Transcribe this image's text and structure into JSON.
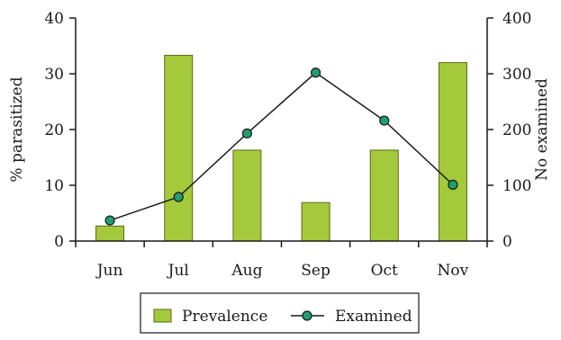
{
  "chart_data": {
    "type": "bar",
    "categories": [
      "Jun",
      "Jul",
      "Aug",
      "Sep",
      "Oct",
      "Nov"
    ],
    "series": [
      {
        "name": "Prevalence",
        "type": "bar",
        "axis": "left",
        "color": "#a4c93b",
        "values": [
          2.7,
          33.3,
          16.3,
          6.9,
          16.3,
          32.0
        ]
      },
      {
        "name": "Examined",
        "type": "line",
        "axis": "right",
        "color": "#1f9e6e",
        "values": [
          37,
          79,
          193,
          302,
          216,
          101
        ]
      }
    ],
    "ylabel": "% parasitized",
    "y2label": "No examined",
    "ylim": [
      0,
      40
    ],
    "y2lim": [
      0,
      400
    ],
    "yticks": [
      "0",
      "10",
      "20",
      "30",
      "40"
    ],
    "y2ticks": [
      "0",
      "100",
      "200",
      "300",
      "400"
    ],
    "grid": false,
    "legend_position": "bottom"
  }
}
